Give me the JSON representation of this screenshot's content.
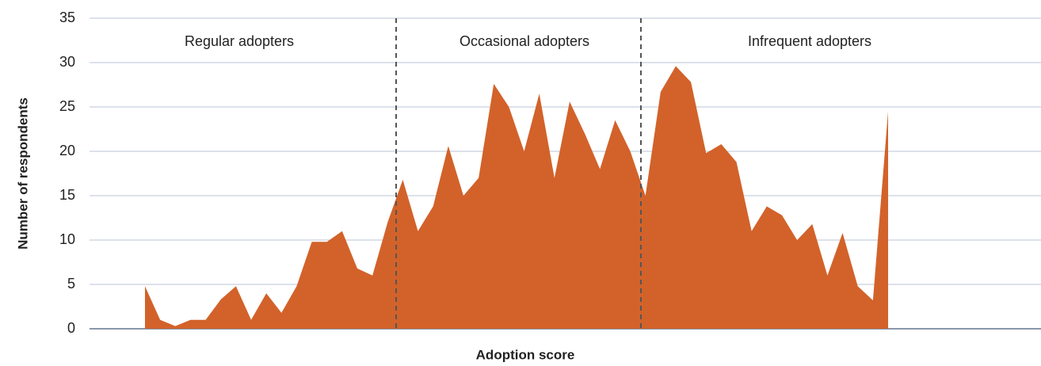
{
  "chart_data": {
    "type": "area",
    "x_label": "Adoption score",
    "y_label": "Number of respondents",
    "categories": [
      null,
      null,
      null,
      null,
      null,
      null,
      null,
      null,
      null,
      null,
      null,
      null,
      null,
      null,
      null,
      null,
      null,
      null,
      null,
      null,
      null,
      null,
      null,
      null,
      null,
      null,
      null,
      null,
      null,
      null,
      null,
      null,
      null,
      null,
      null,
      null,
      null,
      null,
      null,
      null,
      null,
      null,
      null,
      null,
      null,
      null,
      null,
      null,
      null,
      null
    ],
    "series": [
      {
        "name": "Respondents",
        "color": "#d2622a",
        "values": [
          4.8,
          1,
          0.3,
          1,
          1,
          3.3,
          4.8,
          1,
          4,
          1.8,
          4.8,
          9.8,
          9.8,
          11,
          6.8,
          6,
          12,
          16.8,
          11,
          13.8,
          20.6,
          15,
          17,
          27.6,
          25,
          20,
          26.5,
          17,
          25.6,
          22,
          18,
          23.5,
          20,
          15,
          26.7,
          29.6,
          27.8,
          19.8,
          20.8,
          18.8,
          11,
          13.8,
          12.8,
          10,
          11.8,
          6,
          10.8,
          4.8,
          3.2,
          24.5
        ]
      }
    ],
    "annotations": [
      "Regular adopters",
      "Occasional adopters",
      "Infrequent adopters"
    ],
    "ylim": [
      0,
      35
    ],
    "yticks": [
      0,
      5,
      10,
      15,
      20,
      25,
      30,
      35
    ],
    "grid": true
  }
}
